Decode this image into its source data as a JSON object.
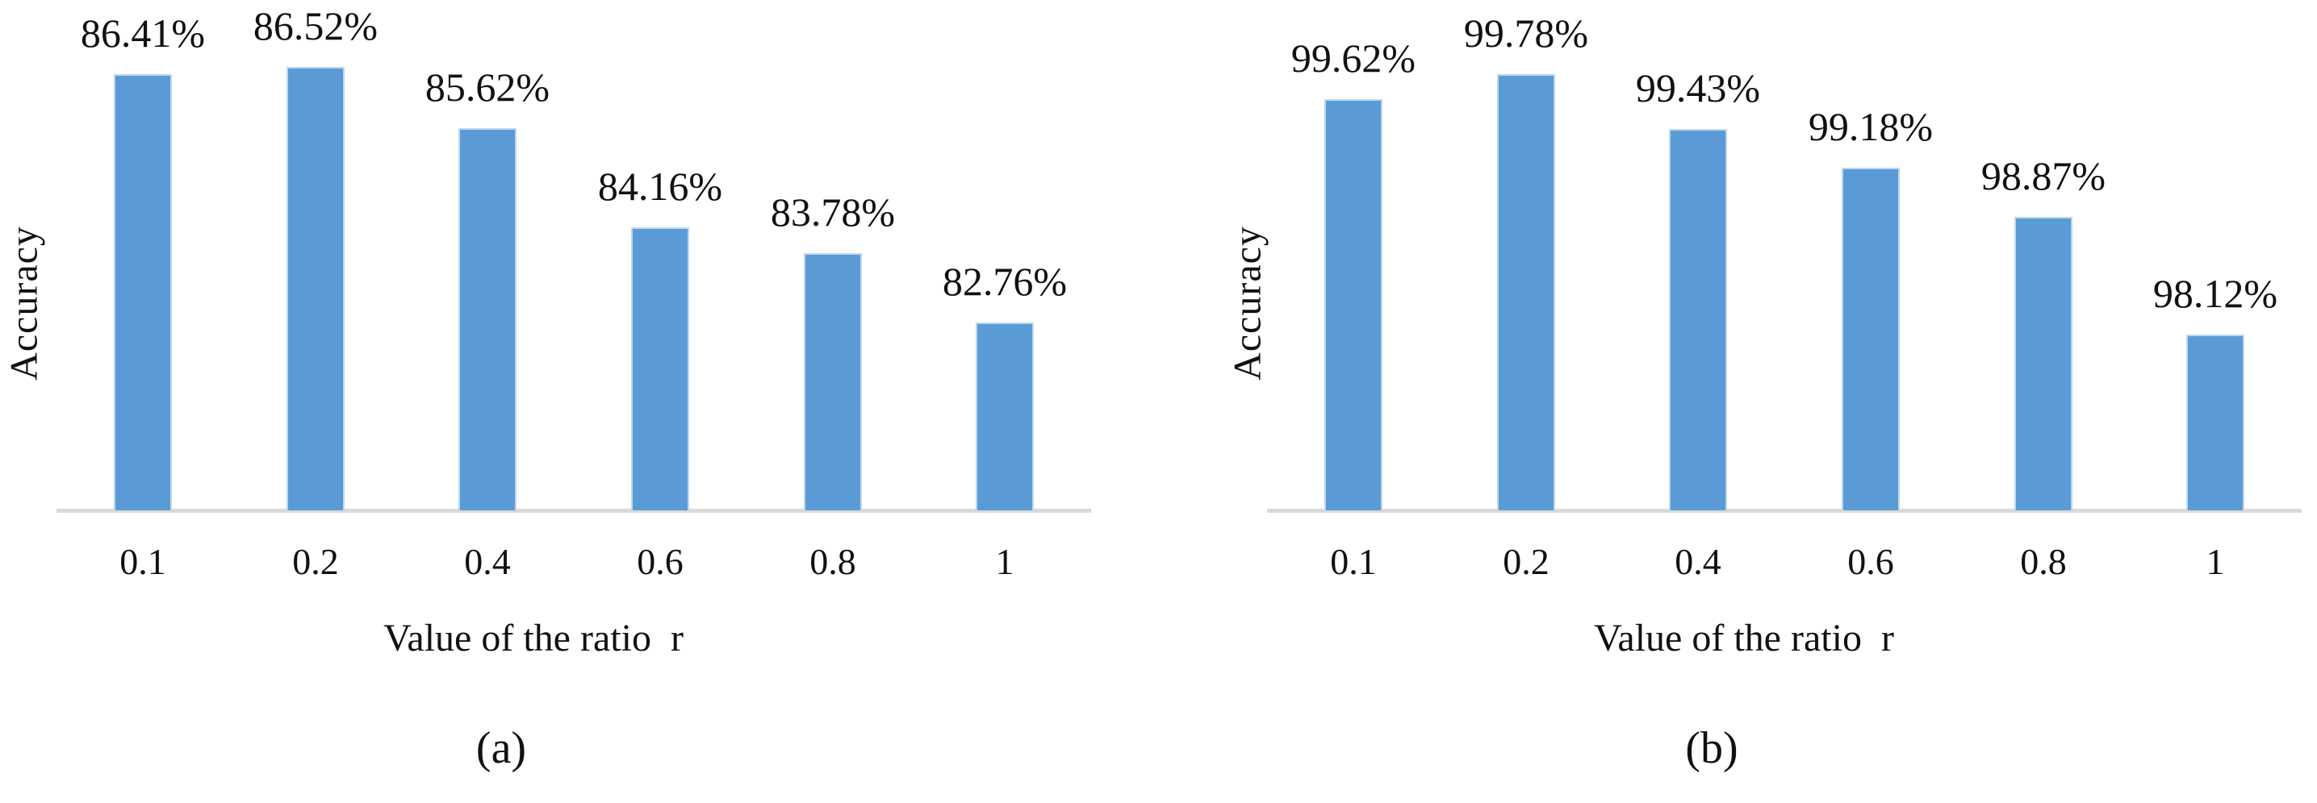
{
  "figure": {
    "background": "#ffffff",
    "bar_color": "#5B9BD5",
    "bar_edge_color": "#BDD7EE",
    "axis_line_color": "#D9D9D9",
    "text_color": "#111111"
  },
  "chart_data": [
    {
      "type": "bar",
      "caption": "(a)",
      "ylabel": "Accuracy",
      "xlabel": "Value of the ratio  r",
      "categories": [
        "0.1",
        "0.2",
        "0.4",
        "0.6",
        "0.8",
        "1"
      ],
      "values": [
        86.41,
        86.52,
        85.62,
        84.16,
        83.78,
        82.76
      ],
      "labels": [
        "86.41%",
        "86.52%",
        "85.62%",
        "84.16%",
        "83.78%",
        "82.76%"
      ],
      "ylim": [
        80,
        87.5
      ],
      "grid": "off",
      "legend": "none"
    },
    {
      "type": "bar",
      "caption": "(b)",
      "ylabel": "Accuracy",
      "xlabel": "Value of the ratio  r",
      "categories": [
        "0.1",
        "0.2",
        "0.4",
        "0.6",
        "0.8",
        "1"
      ],
      "values": [
        99.62,
        99.78,
        99.43,
        99.18,
        98.87,
        98.12
      ],
      "labels": [
        "99.62%",
        "99.78%",
        "99.43%",
        "99.18%",
        "98.87%",
        "98.12%"
      ],
      "ylim": [
        97,
        100.25
      ],
      "grid": "off",
      "legend": "none"
    }
  ]
}
